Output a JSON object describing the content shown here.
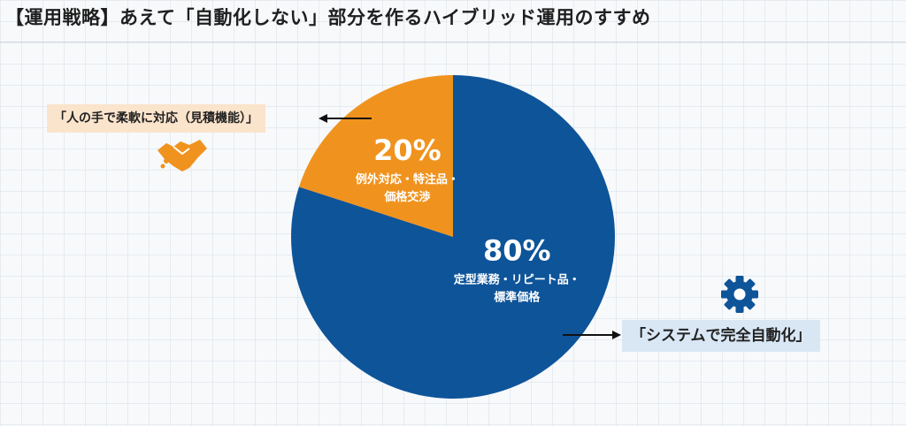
{
  "title": "【運用戦略】あえて「自動化しない」部分を作るハイブリッド運用のすすめ",
  "callouts": {
    "manual": "「人の手で柔軟に対応（見積機能）」",
    "auto": "「システムで完全自動化」"
  },
  "icons": {
    "manual": "handshake-icon",
    "auto": "gear-icon"
  },
  "chart_data": {
    "type": "pie",
    "slices": [
      {
        "value": 20,
        "label": "20%",
        "description": [
          "例外対応・特注品・",
          "価格交渉"
        ],
        "color": "#f0931e"
      },
      {
        "value": 80,
        "label": "80%",
        "description": [
          "定型業務・リピート品・",
          "標準価格"
        ],
        "color": "#0e5499"
      }
    ]
  }
}
